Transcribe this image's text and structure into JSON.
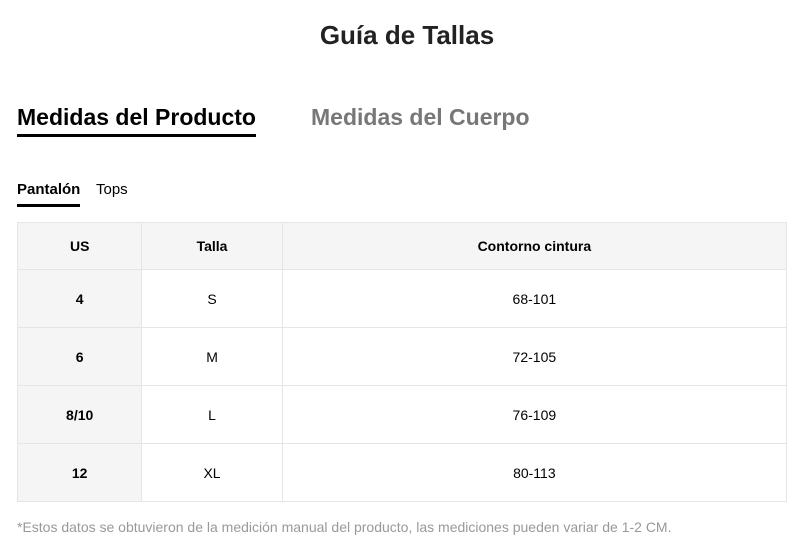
{
  "title": "Guía de Tallas",
  "main_tabs": [
    {
      "label": "Medidas del Producto",
      "active": true
    },
    {
      "label": "Medidas del Cuerpo",
      "active": false
    }
  ],
  "sub_tabs": [
    {
      "label": "Pantalón",
      "active": true
    },
    {
      "label": "Tops",
      "active": false
    }
  ],
  "table": {
    "headers": [
      "US",
      "Talla",
      "Contorno cintura"
    ],
    "rows": [
      [
        "4",
        "S",
        "68-101"
      ],
      [
        "6",
        "M",
        "72-105"
      ],
      [
        "8/10",
        "L",
        "76-109"
      ],
      [
        "12",
        "XL",
        "80-113"
      ]
    ]
  },
  "note": "*Estos datos se obtuvieron de la medición manual del producto, las mediciones pueden variar de 1-2 CM."
}
